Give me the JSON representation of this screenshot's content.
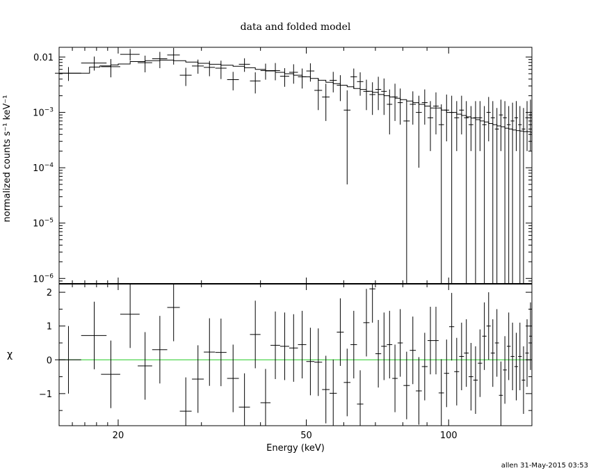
{
  "chart_data": [
    {
      "type": "line",
      "title": "data and folded model",
      "ylabel": "normalized counts s⁻¹ keV⁻¹",
      "xlabel": "",
      "xscale": "log",
      "yscale": "log",
      "xlim": [
        15,
        150
      ],
      "ylim": [
        8e-07,
        0.015
      ],
      "yticks": [
        {
          "value": 0.01,
          "base": "0.01",
          "exp": ""
        },
        {
          "value": 0.001,
          "base": "10",
          "exp": "−3"
        },
        {
          "value": 0.0001,
          "base": "10",
          "exp": "−4"
        },
        {
          "value": 1e-05,
          "base": "10",
          "exp": "−5"
        },
        {
          "value": 1e-06,
          "base": "10",
          "exp": "−6"
        }
      ],
      "grid": false,
      "series": [
        {
          "role": "data",
          "x": [
            15.7,
            17.8,
            19.3,
            21.2,
            22.8,
            24.5,
            26.2,
            27.8,
            29.5,
            31.2,
            33.0,
            35.0,
            37.0,
            39.0,
            41.0,
            43.0,
            45.0,
            47.0,
            49.0,
            51.0,
            53.0,
            55.0,
            57.0,
            59.0,
            61.0,
            63.0,
            65.0,
            67.0,
            69.0,
            71.0,
            73.0,
            75.0,
            77.0,
            79.0,
            81.5,
            84.0,
            86.5,
            89.0,
            91.5,
            94.0,
            96.5,
            99.0,
            101.5,
            104.0,
            106.5,
            109.0,
            111.5,
            114.0,
            116.5,
            119.0,
            121.5,
            124.0,
            126.5,
            129.0,
            131.5,
            134.0,
            136.5,
            139.0,
            141.5,
            144.0,
            146.5,
            149.0
          ],
          "xerr": [
            1.0,
            1.1,
            0.9,
            1.0,
            0.8,
            0.9,
            0.8,
            0.8,
            0.85,
            0.85,
            0.9,
            1.0,
            1.0,
            1.0,
            1.0,
            1.0,
            1.0,
            1.0,
            1.0,
            1.0,
            1.0,
            1.0,
            1.0,
            1.0,
            1.0,
            1.0,
            1.0,
            1.0,
            1.0,
            1.0,
            1.0,
            1.0,
            1.0,
            1.0,
            1.25,
            1.25,
            1.25,
            1.25,
            1.25,
            1.25,
            1.25,
            1.25,
            1.25,
            1.25,
            1.25,
            1.25,
            1.25,
            1.25,
            1.25,
            1.25,
            1.25,
            1.25,
            1.25,
            1.25,
            1.25,
            1.25,
            1.25,
            1.25,
            1.25,
            1.25,
            1.25,
            1.0
          ],
          "y": [
            0.0051,
            0.0078,
            0.0067,
            0.0112,
            0.0079,
            0.0093,
            0.0109,
            0.0047,
            0.0069,
            0.0065,
            0.0063,
            0.0039,
            0.0074,
            0.0037,
            0.0057,
            0.0057,
            0.0045,
            0.0053,
            0.0044,
            0.0056,
            0.0025,
            0.0019,
            0.0038,
            0.0031,
            0.0011,
            0.0044,
            0.0036,
            0.0024,
            0.0021,
            0.0026,
            0.0024,
            0.0014,
            0.0019,
            0.0015,
            0.0007,
            0.0014,
            0.001,
            0.0015,
            0.0008,
            0.0013,
            0.0006,
            0.0011,
            0.001,
            0.0008,
            0.0011,
            0.0008,
            0.0006,
            0.0008,
            0.0008,
            0.0006,
            0.001,
            0.0008,
            0.0005,
            0.0009,
            0.0008,
            0.0006,
            0.0007,
            0.0008,
            0.0006,
            0.0005,
            0.0008,
            0.0009
          ],
          "ylo": [
            0.0037,
            0.0057,
            0.0043,
            0.0086,
            0.0053,
            0.0063,
            0.0073,
            0.003,
            0.005,
            0.0045,
            0.004,
            0.0025,
            0.0054,
            0.0022,
            0.0039,
            0.0038,
            0.0029,
            0.0033,
            0.0027,
            0.0036,
            0.0011,
            0.0007,
            0.0023,
            0.0016,
            5e-05,
            0.0027,
            0.002,
            0.0011,
            0.0009,
            0.0011,
            0.0009,
            0.0004,
            0.0007,
            0.0006,
            5e-07,
            0.0006,
            0.0001,
            0.0006,
            0.0002,
            0.0004,
            5e-07,
            0.0003,
            5e-07,
            0.0002,
            0.0004,
            5e-07,
            0.0002,
            5e-07,
            0.0002,
            5e-07,
            0.0003,
            5e-07,
            5e-07,
            0.0002,
            5e-07,
            5e-07,
            5e-07,
            0.0002,
            5e-07,
            5e-07,
            0.0002,
            0.0002
          ],
          "yhi": [
            0.0066,
            0.0102,
            0.0092,
            0.014,
            0.0106,
            0.0124,
            0.0146,
            0.0064,
            0.009,
            0.0085,
            0.0086,
            0.0054,
            0.0095,
            0.0053,
            0.0076,
            0.0078,
            0.0063,
            0.0074,
            0.0062,
            0.0077,
            0.0041,
            0.0033,
            0.0054,
            0.0047,
            0.0025,
            0.0062,
            0.0053,
            0.0039,
            0.0035,
            0.0044,
            0.0041,
            0.0026,
            0.0033,
            0.0027,
            0.0016,
            0.0024,
            0.002,
            0.0026,
            0.0016,
            0.0023,
            0.0014,
            0.0021,
            0.002,
            0.0016,
            0.002,
            0.0016,
            0.0013,
            0.0016,
            0.0016,
            0.0013,
            0.0019,
            0.0016,
            0.0012,
            0.0017,
            0.0016,
            0.0013,
            0.0015,
            0.0016,
            0.0013,
            0.0012,
            0.0016,
            0.0017
          ]
        },
        {
          "role": "model",
          "x": [
            14.8,
            16.7,
            17.4,
            18.3,
            19.3,
            20.0,
            21.2,
            22.8,
            24.5,
            26.2,
            27.8,
            29.5,
            31.2,
            33.0,
            35.0,
            37.0,
            39.0,
            41.0,
            43.0,
            45.0,
            47.0,
            49.0,
            51.0,
            53.0,
            55.0,
            57.0,
            59.0,
            61.0,
            63.0,
            65.0,
            67.0,
            69.0,
            71.0,
            73.0,
            75.0,
            77.0,
            79.0,
            81.5,
            84.0,
            86.5,
            89.0,
            91.5,
            94.0,
            96.5,
            99.0,
            101.5,
            104.0,
            106.5,
            109.0,
            111.5,
            114.0,
            116.5,
            119.0,
            121.5,
            124.0,
            126.5,
            129.0,
            131.5,
            134.0,
            136.5,
            139.0,
            141.5,
            144.0,
            146.5,
            149.0,
            150.0
          ],
          "y": [
            0.0051,
            0.0051,
            0.0066,
            0.0069,
            0.0072,
            0.0075,
            0.0083,
            0.0086,
            0.0088,
            0.0086,
            0.0081,
            0.0077,
            0.0074,
            0.0071,
            0.0068,
            0.0064,
            0.006,
            0.0056,
            0.0053,
            0.005,
            0.0047,
            0.0044,
            0.0041,
            0.0038,
            0.0035,
            0.0033,
            0.0031,
            0.0029,
            0.0027,
            0.0026,
            0.0024,
            0.0023,
            0.0021,
            0.002,
            0.0019,
            0.0018,
            0.0017,
            0.0016,
            0.0015,
            0.0014,
            0.0013,
            0.0012,
            0.0012,
            0.0011,
            0.001,
            0.001,
            0.00093,
            0.00088,
            0.00083,
            0.00079,
            0.00074,
            0.0007,
            0.00067,
            0.00063,
            0.0006,
            0.00057,
            0.00055,
            0.00052,
            0.0005,
            0.00048,
            0.00047,
            0.00046,
            0.00045,
            0.00045,
            0.00044,
            0.00044
          ]
        }
      ]
    },
    {
      "type": "scatter",
      "title": "",
      "ylabel": "χ",
      "xlabel": "Energy (keV)",
      "xscale": "log",
      "xlim": [
        15,
        150
      ],
      "ylim": [
        -1.95,
        2.25
      ],
      "yticks": [
        -1,
        0,
        1,
        2
      ],
      "ytick_labels": [
        "−1",
        "0",
        "1",
        "2"
      ],
      "xticks": [
        20,
        50,
        100
      ],
      "xtick_labels": [
        "20",
        "50",
        "100"
      ],
      "zero_line_color": "#22cc22",
      "grid": false,
      "series": [
        {
          "role": "residuals",
          "x": [
            15.7,
            17.8,
            19.3,
            21.2,
            22.8,
            24.5,
            26.2,
            27.8,
            29.5,
            31.2,
            33.0,
            35.0,
            37.0,
            39.0,
            41.0,
            43.0,
            45.0,
            47.0,
            49.0,
            51.0,
            53.0,
            55.0,
            57.0,
            59.0,
            61.0,
            63.0,
            65.0,
            67.0,
            69.0,
            71.0,
            73.0,
            75.0,
            77.0,
            79.0,
            81.5,
            84.0,
            86.5,
            89.0,
            91.5,
            94.0,
            96.5,
            99.0,
            101.5,
            104.0,
            106.5,
            109.0,
            111.5,
            114.0,
            116.5,
            119.0,
            121.5,
            124.0,
            126.5,
            129.0,
            131.5,
            134.0,
            136.5,
            139.0,
            141.5,
            144.0,
            146.5,
            149.0
          ],
          "xerr": [
            1.0,
            1.1,
            0.9,
            1.0,
            0.8,
            0.9,
            0.8,
            0.8,
            0.85,
            0.85,
            0.9,
            1.0,
            1.0,
            1.0,
            1.0,
            1.0,
            1.0,
            1.0,
            1.0,
            1.0,
            1.0,
            1.0,
            1.0,
            1.0,
            1.0,
            1.0,
            1.0,
            1.0,
            1.0,
            1.0,
            1.0,
            1.0,
            1.0,
            1.0,
            1.25,
            1.25,
            1.25,
            1.25,
            1.25,
            1.25,
            1.25,
            1.25,
            1.25,
            1.25,
            1.25,
            1.25,
            1.25,
            1.25,
            1.25,
            1.25,
            1.25,
            1.25,
            1.25,
            1.25,
            1.25,
            1.25,
            1.25,
            1.25,
            1.25,
            1.25,
            1.25,
            1.0
          ],
          "y": [
            0.0,
            0.72,
            -0.43,
            1.35,
            -0.18,
            0.3,
            1.55,
            -1.52,
            -0.57,
            0.23,
            0.22,
            -0.55,
            -1.4,
            0.75,
            -1.27,
            0.43,
            0.4,
            0.35,
            0.45,
            -0.05,
            -0.07,
            -0.88,
            -0.99,
            0.82,
            -0.67,
            0.45,
            -1.31,
            1.1,
            2.1,
            0.18,
            0.4,
            0.45,
            -0.55,
            0.5,
            -0.76,
            0.28,
            -0.92,
            -0.2,
            0.57,
            0.57,
            -0.98,
            -0.4,
            0.98,
            -0.35,
            0.1,
            0.2,
            -0.5,
            -0.6,
            -0.1,
            0.7,
            1.0,
            0.2,
            0.5,
            -1.05,
            -0.3,
            0.4,
            0.1,
            -0.2,
            0.1,
            -0.6,
            0.2,
            0.7
          ],
          "yerr": [
            1.0,
            1.0,
            1.0,
            1.0,
            1.0,
            1.0,
            1.0,
            1.0,
            1.0,
            1.0,
            1.0,
            1.0,
            1.0,
            1.0,
            1.0,
            1.0,
            1.0,
            1.0,
            1.0,
            1.0,
            1.0,
            1.0,
            1.0,
            1.0,
            1.0,
            1.0,
            1.0,
            1.0,
            1.0,
            1.0,
            1.0,
            1.0,
            1.0,
            1.0,
            1.0,
            1.0,
            1.0,
            1.0,
            1.0,
            1.0,
            1.0,
            1.0,
            1.0,
            1.0,
            1.0,
            1.0,
            1.0,
            1.0,
            1.0,
            1.0,
            1.0,
            1.0,
            1.0,
            1.0,
            1.0,
            1.0,
            1.0,
            1.0,
            1.0,
            1.0,
            1.0,
            1.0
          ]
        }
      ]
    }
  ],
  "footer": {
    "stamp": "allen 31-May-2015 03:53"
  }
}
